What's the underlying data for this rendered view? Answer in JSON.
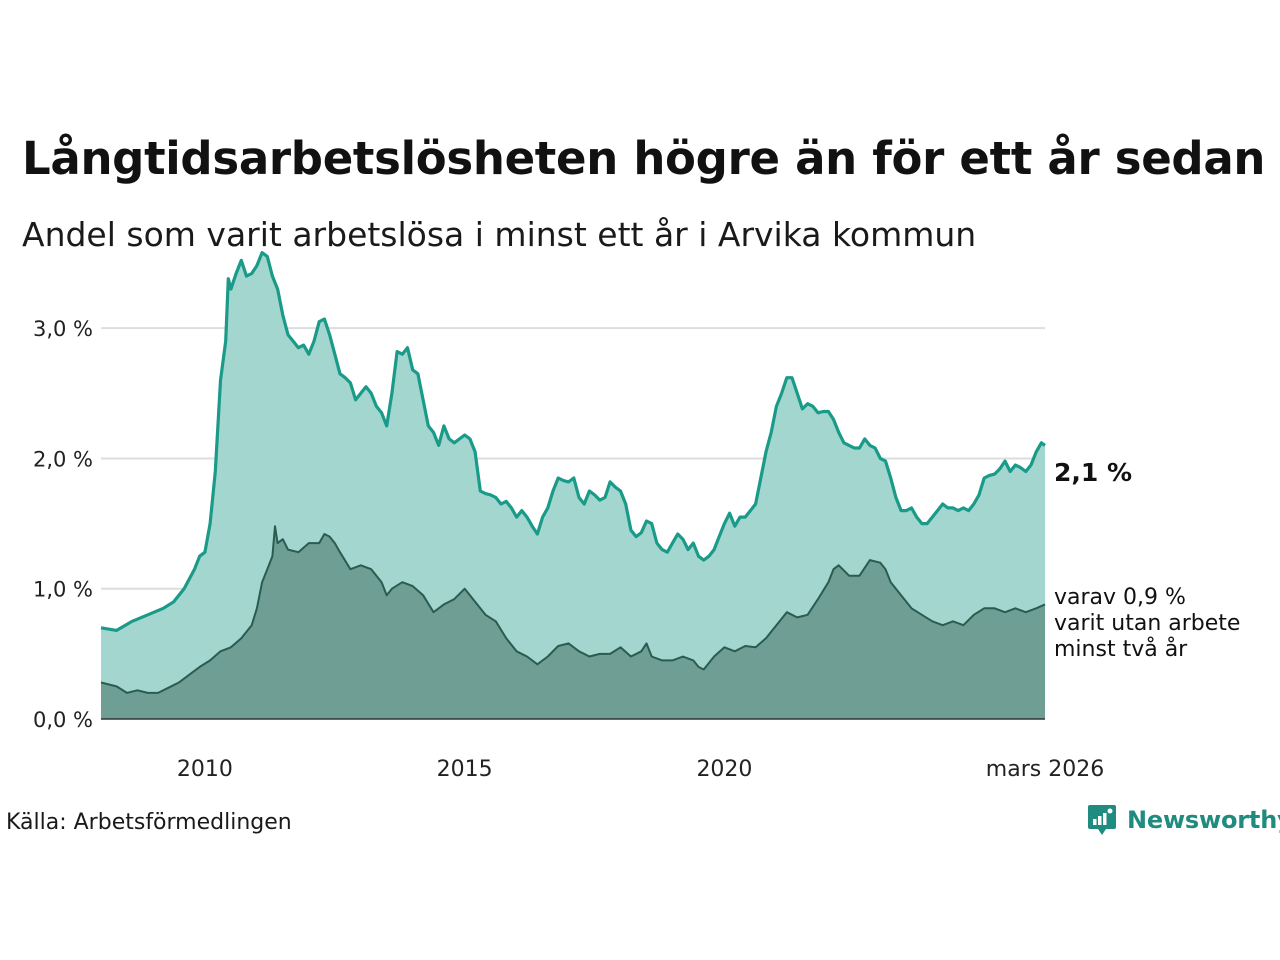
{
  "header": {
    "title": "Långtidsarbetslösheten högre än för ett år sedan",
    "subtitle": "Andel som varit arbetslösa i minst ett år i Arvika kommun"
  },
  "footer": {
    "source": "Källa: Arbetsförmedlingen",
    "brand": "Newsworthy"
  },
  "annotations": {
    "end_value": "2,1 %",
    "note_lines": [
      "varav 0,9 %",
      "varit utan arbete",
      "minst två år"
    ]
  },
  "colors": {
    "series1_line": "#1a9a88",
    "series1_fill": "#a3d6cf",
    "series2_line": "#2a5c50",
    "series2_fill": "#6f9e94",
    "grid": "#dddddd",
    "brand": "#1f8c7f"
  },
  "chart_data": {
    "type": "area",
    "title": "Långtidsarbetslösheten högre än för ett år sedan",
    "subtitle": "Andel som varit arbetslösa i minst ett år i Arvika kommun",
    "xlabel": "",
    "ylabel": "",
    "x_range": [
      2008.0,
      2026.17
    ],
    "ylim": [
      0,
      3.6
    ],
    "y_ticks": [
      0,
      1,
      2,
      3
    ],
    "y_tick_labels": [
      "0,0 %",
      "1,0 %",
      "2,0 %",
      "3,0 %"
    ],
    "x_ticks": [
      2010,
      2015,
      2020,
      2026.17
    ],
    "x_tick_labels": [
      "2010",
      "2015",
      "2020",
      "mars 2026"
    ],
    "grid": true,
    "series": [
      {
        "name": "Arbetslösa minst ett år",
        "points": [
          [
            2008.0,
            0.7
          ],
          [
            2008.3,
            0.68
          ],
          [
            2008.6,
            0.75
          ],
          [
            2008.9,
            0.8
          ],
          [
            2009.2,
            0.85
          ],
          [
            2009.4,
            0.9
          ],
          [
            2009.6,
            1.0
          ],
          [
            2009.8,
            1.15
          ],
          [
            2009.9,
            1.25
          ],
          [
            2010.0,
            1.28
          ],
          [
            2010.1,
            1.5
          ],
          [
            2010.2,
            1.9
          ],
          [
            2010.3,
            2.6
          ],
          [
            2010.4,
            2.9
          ],
          [
            2010.45,
            3.38
          ],
          [
            2010.5,
            3.3
          ],
          [
            2010.6,
            3.42
          ],
          [
            2010.7,
            3.52
          ],
          [
            2010.8,
            3.4
          ],
          [
            2010.9,
            3.42
          ],
          [
            2011.0,
            3.48
          ],
          [
            2011.1,
            3.58
          ],
          [
            2011.2,
            3.55
          ],
          [
            2011.3,
            3.4
          ],
          [
            2011.4,
            3.3
          ],
          [
            2011.5,
            3.1
          ],
          [
            2011.6,
            2.95
          ],
          [
            2011.7,
            2.9
          ],
          [
            2011.8,
            2.85
          ],
          [
            2011.9,
            2.87
          ],
          [
            2012.0,
            2.8
          ],
          [
            2012.1,
            2.9
          ],
          [
            2012.2,
            3.05
          ],
          [
            2012.3,
            3.07
          ],
          [
            2012.4,
            2.95
          ],
          [
            2012.5,
            2.8
          ],
          [
            2012.6,
            2.65
          ],
          [
            2012.7,
            2.62
          ],
          [
            2012.8,
            2.58
          ],
          [
            2012.9,
            2.45
          ],
          [
            2013.0,
            2.5
          ],
          [
            2013.1,
            2.55
          ],
          [
            2013.2,
            2.5
          ],
          [
            2013.3,
            2.4
          ],
          [
            2013.4,
            2.35
          ],
          [
            2013.5,
            2.25
          ],
          [
            2013.6,
            2.5
          ],
          [
            2013.7,
            2.82
          ],
          [
            2013.8,
            2.8
          ],
          [
            2013.9,
            2.85
          ],
          [
            2014.0,
            2.68
          ],
          [
            2014.1,
            2.65
          ],
          [
            2014.2,
            2.45
          ],
          [
            2014.3,
            2.25
          ],
          [
            2014.4,
            2.2
          ],
          [
            2014.5,
            2.1
          ],
          [
            2014.6,
            2.25
          ],
          [
            2014.7,
            2.15
          ],
          [
            2014.8,
            2.12
          ],
          [
            2014.9,
            2.15
          ],
          [
            2015.0,
            2.18
          ],
          [
            2015.1,
            2.15
          ],
          [
            2015.2,
            2.05
          ],
          [
            2015.3,
            1.75
          ],
          [
            2015.4,
            1.73
          ],
          [
            2015.5,
            1.72
          ],
          [
            2015.6,
            1.7
          ],
          [
            2015.7,
            1.65
          ],
          [
            2015.8,
            1.67
          ],
          [
            2015.9,
            1.62
          ],
          [
            2016.0,
            1.55
          ],
          [
            2016.1,
            1.6
          ],
          [
            2016.2,
            1.55
          ],
          [
            2016.3,
            1.48
          ],
          [
            2016.4,
            1.42
          ],
          [
            2016.5,
            1.55
          ],
          [
            2016.6,
            1.62
          ],
          [
            2016.7,
            1.75
          ],
          [
            2016.8,
            1.85
          ],
          [
            2016.9,
            1.83
          ],
          [
            2017.0,
            1.82
          ],
          [
            2017.1,
            1.85
          ],
          [
            2017.2,
            1.7
          ],
          [
            2017.3,
            1.65
          ],
          [
            2017.4,
            1.75
          ],
          [
            2017.5,
            1.72
          ],
          [
            2017.6,
            1.68
          ],
          [
            2017.7,
            1.7
          ],
          [
            2017.8,
            1.82
          ],
          [
            2017.9,
            1.78
          ],
          [
            2018.0,
            1.75
          ],
          [
            2018.1,
            1.65
          ],
          [
            2018.2,
            1.45
          ],
          [
            2018.3,
            1.4
          ],
          [
            2018.4,
            1.43
          ],
          [
            2018.5,
            1.52
          ],
          [
            2018.6,
            1.5
          ],
          [
            2018.7,
            1.35
          ],
          [
            2018.8,
            1.3
          ],
          [
            2018.9,
            1.28
          ],
          [
            2019.0,
            1.35
          ],
          [
            2019.1,
            1.42
          ],
          [
            2019.2,
            1.38
          ],
          [
            2019.3,
            1.3
          ],
          [
            2019.4,
            1.35
          ],
          [
            2019.5,
            1.25
          ],
          [
            2019.6,
            1.22
          ],
          [
            2019.7,
            1.25
          ],
          [
            2019.8,
            1.3
          ],
          [
            2019.9,
            1.4
          ],
          [
            2020.0,
            1.5
          ],
          [
            2020.1,
            1.58
          ],
          [
            2020.2,
            1.48
          ],
          [
            2020.3,
            1.55
          ],
          [
            2020.4,
            1.55
          ],
          [
            2020.5,
            1.6
          ],
          [
            2020.6,
            1.65
          ],
          [
            2020.7,
            1.85
          ],
          [
            2020.8,
            2.05
          ],
          [
            2020.9,
            2.2
          ],
          [
            2021.0,
            2.4
          ],
          [
            2021.1,
            2.5
          ],
          [
            2021.2,
            2.62
          ],
          [
            2021.3,
            2.62
          ],
          [
            2021.4,
            2.5
          ],
          [
            2021.5,
            2.38
          ],
          [
            2021.6,
            2.42
          ],
          [
            2021.7,
            2.4
          ],
          [
            2021.8,
            2.35
          ],
          [
            2021.9,
            2.36
          ],
          [
            2022.0,
            2.36
          ],
          [
            2022.1,
            2.3
          ],
          [
            2022.2,
            2.2
          ],
          [
            2022.3,
            2.12
          ],
          [
            2022.4,
            2.1
          ],
          [
            2022.5,
            2.08
          ],
          [
            2022.6,
            2.08
          ],
          [
            2022.7,
            2.15
          ],
          [
            2022.8,
            2.1
          ],
          [
            2022.9,
            2.08
          ],
          [
            2023.0,
            2.0
          ],
          [
            2023.1,
            1.98
          ],
          [
            2023.2,
            1.85
          ],
          [
            2023.3,
            1.7
          ],
          [
            2023.4,
            1.6
          ],
          [
            2023.5,
            1.6
          ],
          [
            2023.6,
            1.62
          ],
          [
            2023.7,
            1.55
          ],
          [
            2023.8,
            1.5
          ],
          [
            2023.9,
            1.5
          ],
          [
            2024.0,
            1.55
          ],
          [
            2024.1,
            1.6
          ],
          [
            2024.2,
            1.65
          ],
          [
            2024.3,
            1.62
          ],
          [
            2024.4,
            1.62
          ],
          [
            2024.5,
            1.6
          ],
          [
            2024.6,
            1.62
          ],
          [
            2024.7,
            1.6
          ],
          [
            2024.8,
            1.65
          ],
          [
            2024.9,
            1.72
          ],
          [
            2025.0,
            1.85
          ],
          [
            2025.1,
            1.87
          ],
          [
            2025.2,
            1.88
          ],
          [
            2025.3,
            1.92
          ],
          [
            2025.4,
            1.98
          ],
          [
            2025.5,
            1.9
          ],
          [
            2025.6,
            1.95
          ],
          [
            2025.7,
            1.93
          ],
          [
            2025.8,
            1.9
          ],
          [
            2025.9,
            1.95
          ],
          [
            2026.0,
            2.05
          ],
          [
            2026.1,
            2.12
          ],
          [
            2026.17,
            2.1
          ]
        ]
      },
      {
        "name": "varav minst två år",
        "points": [
          [
            2008.0,
            0.28
          ],
          [
            2008.3,
            0.25
          ],
          [
            2008.5,
            0.2
          ],
          [
            2008.7,
            0.22
          ],
          [
            2008.9,
            0.2
          ],
          [
            2009.1,
            0.2
          ],
          [
            2009.3,
            0.24
          ],
          [
            2009.5,
            0.28
          ],
          [
            2009.7,
            0.34
          ],
          [
            2009.9,
            0.4
          ],
          [
            2010.1,
            0.45
          ],
          [
            2010.3,
            0.52
          ],
          [
            2010.5,
            0.55
          ],
          [
            2010.7,
            0.62
          ],
          [
            2010.9,
            0.72
          ],
          [
            2011.0,
            0.85
          ],
          [
            2011.1,
            1.05
          ],
          [
            2011.2,
            1.15
          ],
          [
            2011.3,
            1.25
          ],
          [
            2011.35,
            1.48
          ],
          [
            2011.4,
            1.35
          ],
          [
            2011.5,
            1.38
          ],
          [
            2011.6,
            1.3
          ],
          [
            2011.8,
            1.28
          ],
          [
            2012.0,
            1.35
          ],
          [
            2012.2,
            1.35
          ],
          [
            2012.3,
            1.42
          ],
          [
            2012.4,
            1.4
          ],
          [
            2012.5,
            1.35
          ],
          [
            2012.6,
            1.28
          ],
          [
            2012.8,
            1.15
          ],
          [
            2013.0,
            1.18
          ],
          [
            2013.2,
            1.15
          ],
          [
            2013.4,
            1.05
          ],
          [
            2013.5,
            0.95
          ],
          [
            2013.6,
            1.0
          ],
          [
            2013.8,
            1.05
          ],
          [
            2014.0,
            1.02
          ],
          [
            2014.2,
            0.95
          ],
          [
            2014.4,
            0.82
          ],
          [
            2014.6,
            0.88
          ],
          [
            2014.8,
            0.92
          ],
          [
            2015.0,
            1.0
          ],
          [
            2015.1,
            0.95
          ],
          [
            2015.2,
            0.9
          ],
          [
            2015.4,
            0.8
          ],
          [
            2015.6,
            0.75
          ],
          [
            2015.8,
            0.62
          ],
          [
            2016.0,
            0.52
          ],
          [
            2016.2,
            0.48
          ],
          [
            2016.4,
            0.42
          ],
          [
            2016.6,
            0.48
          ],
          [
            2016.8,
            0.56
          ],
          [
            2017.0,
            0.58
          ],
          [
            2017.2,
            0.52
          ],
          [
            2017.4,
            0.48
          ],
          [
            2017.6,
            0.5
          ],
          [
            2017.8,
            0.5
          ],
          [
            2018.0,
            0.55
          ],
          [
            2018.2,
            0.48
          ],
          [
            2018.4,
            0.52
          ],
          [
            2018.5,
            0.58
          ],
          [
            2018.6,
            0.48
          ],
          [
            2018.8,
            0.45
          ],
          [
            2019.0,
            0.45
          ],
          [
            2019.2,
            0.48
          ],
          [
            2019.4,
            0.45
          ],
          [
            2019.5,
            0.4
          ],
          [
            2019.6,
            0.38
          ],
          [
            2019.8,
            0.48
          ],
          [
            2020.0,
            0.55
          ],
          [
            2020.2,
            0.52
          ],
          [
            2020.4,
            0.56
          ],
          [
            2020.6,
            0.55
          ],
          [
            2020.8,
            0.62
          ],
          [
            2021.0,
            0.72
          ],
          [
            2021.2,
            0.82
          ],
          [
            2021.4,
            0.78
          ],
          [
            2021.6,
            0.8
          ],
          [
            2021.8,
            0.92
          ],
          [
            2022.0,
            1.05
          ],
          [
            2022.1,
            1.15
          ],
          [
            2022.2,
            1.18
          ],
          [
            2022.4,
            1.1
          ],
          [
            2022.6,
            1.1
          ],
          [
            2022.8,
            1.22
          ],
          [
            2023.0,
            1.2
          ],
          [
            2023.1,
            1.15
          ],
          [
            2023.2,
            1.05
          ],
          [
            2023.4,
            0.95
          ],
          [
            2023.6,
            0.85
          ],
          [
            2023.8,
            0.8
          ],
          [
            2024.0,
            0.75
          ],
          [
            2024.2,
            0.72
          ],
          [
            2024.4,
            0.75
          ],
          [
            2024.6,
            0.72
          ],
          [
            2024.8,
            0.8
          ],
          [
            2025.0,
            0.85
          ],
          [
            2025.2,
            0.85
          ],
          [
            2025.4,
            0.82
          ],
          [
            2025.6,
            0.85
          ],
          [
            2025.8,
            0.82
          ],
          [
            2026.0,
            0.85
          ],
          [
            2026.17,
            0.88
          ]
        ]
      }
    ]
  }
}
